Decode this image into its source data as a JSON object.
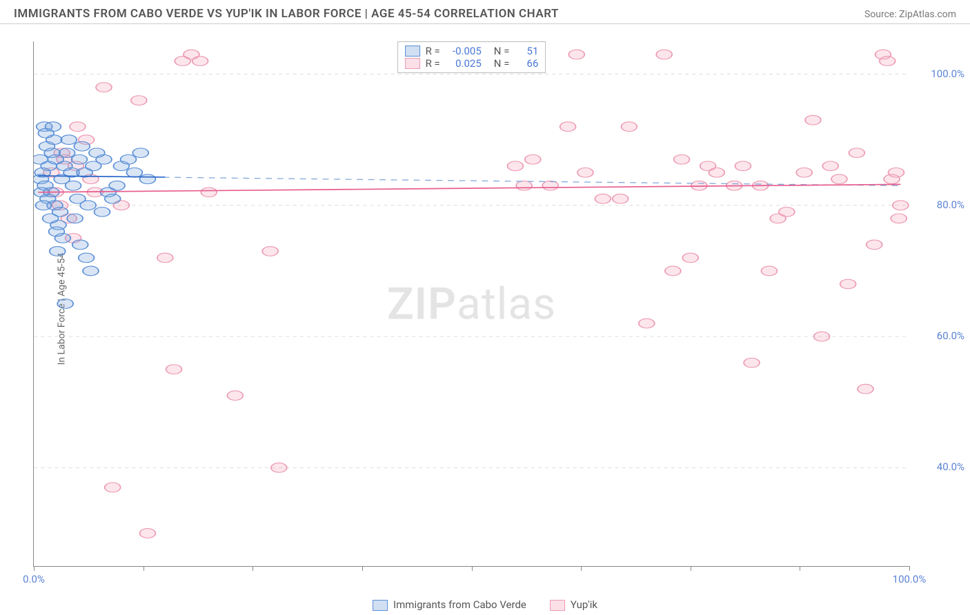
{
  "header": {
    "title": "IMMIGRANTS FROM CABO VERDE VS YUP'IK IN LABOR FORCE | AGE 45-54 CORRELATION CHART",
    "source_label": "Source: ",
    "source_name": "ZipAtlas.com"
  },
  "axes": {
    "ylabel": "In Labor Force | Age 45-54",
    "xlim": [
      0,
      100
    ],
    "ylim": [
      25,
      105
    ],
    "y_ticks": [
      40,
      60,
      80,
      100
    ],
    "y_tick_labels": [
      "40.0%",
      "60.0%",
      "80.0%",
      "100.0%"
    ],
    "x_ticks": [
      0,
      50,
      100
    ],
    "x_tick_marks": [
      0,
      12.5,
      25,
      37.5,
      50,
      62.5,
      75,
      87.5,
      100
    ],
    "x_tick_labels": [
      "0.0%",
      "",
      "100.0%"
    ],
    "tick_color": "#5b82d4"
  },
  "watermark": {
    "left": "ZIP",
    "right": "atlas"
  },
  "legend_top": {
    "rows": [
      {
        "swatch": "blue",
        "r_label": "R =",
        "r_value": "-0.005",
        "n_label": "N =",
        "n_value": "51"
      },
      {
        "swatch": "pink",
        "r_label": "R =",
        "r_value": "0.025",
        "n_label": "N =",
        "n_value": "66"
      }
    ]
  },
  "legend_bottom": {
    "items": [
      {
        "swatch": "blue",
        "label": "Immigrants from Cabo Verde"
      },
      {
        "swatch": "pink",
        "label": "Yup'ik"
      }
    ]
  },
  "chart": {
    "type": "scatter",
    "background_color": "#ffffff",
    "grid_color": "#d8d8d8",
    "marker_radius": 9,
    "series": [
      {
        "name": "Immigrants from Cabo Verde",
        "marker_class": "marker-blue",
        "fill_color": "#78a2db47",
        "stroke_color": "#5a8fd6",
        "trend_solid": {
          "x1": 0.5,
          "y1": 84.5,
          "x2": 15,
          "y2": 84.3,
          "class": "trend-blue-solid"
        },
        "trend_dash": {
          "x1": 0.5,
          "y1": 84.5,
          "x2": 99,
          "y2": 83.0,
          "class": "trend-blue-dash"
        },
        "points": [
          [
            1.2,
            92
          ],
          [
            1.5,
            89
          ],
          [
            1.7,
            86
          ],
          [
            1.0,
            85
          ],
          [
            2.1,
            88
          ],
          [
            2.3,
            90
          ],
          [
            2.5,
            87
          ],
          [
            0.8,
            84
          ],
          [
            1.3,
            83
          ],
          [
            1.6,
            81
          ],
          [
            2.0,
            82
          ],
          [
            2.4,
            80
          ],
          [
            3.0,
            79
          ],
          [
            3.2,
            84
          ],
          [
            3.5,
            86
          ],
          [
            3.8,
            88
          ],
          [
            4.0,
            90
          ],
          [
            4.3,
            85
          ],
          [
            4.5,
            83
          ],
          [
            5.0,
            81
          ],
          [
            5.2,
            87
          ],
          [
            5.5,
            89
          ],
          [
            6.0,
            72
          ],
          [
            6.5,
            70
          ],
          [
            2.8,
            77
          ],
          [
            3.3,
            75
          ],
          [
            1.9,
            78
          ],
          [
            2.6,
            76
          ],
          [
            1.1,
            80
          ],
          [
            0.9,
            82
          ],
          [
            5.8,
            85
          ],
          [
            6.8,
            86
          ],
          [
            7.2,
            88
          ],
          [
            8.0,
            87
          ],
          [
            8.5,
            82
          ],
          [
            9.0,
            81
          ],
          [
            10.0,
            86
          ],
          [
            10.8,
            87
          ],
          [
            11.5,
            85
          ],
          [
            12.2,
            88
          ],
          [
            13.0,
            84
          ],
          [
            3.6,
            65
          ],
          [
            2.7,
            73
          ],
          [
            4.7,
            78
          ],
          [
            5.3,
            74
          ],
          [
            6.2,
            80
          ],
          [
            7.8,
            79
          ],
          [
            9.5,
            83
          ],
          [
            0.7,
            87
          ],
          [
            1.4,
            91
          ],
          [
            2.2,
            92
          ]
        ]
      },
      {
        "name": "Yup'ik",
        "marker_class": "marker-pink",
        "fill_color": "#f4a6bc47",
        "stroke_color": "#ec9ab2",
        "trend_solid": {
          "x1": 0.5,
          "y1": 82.0,
          "x2": 99,
          "y2": 83.2,
          "class": "trend-pink-solid"
        },
        "points": [
          [
            2,
            85
          ],
          [
            2.5,
            82
          ],
          [
            3,
            80
          ],
          [
            3.5,
            87
          ],
          [
            4,
            78
          ],
          [
            4.5,
            75
          ],
          [
            5,
            92
          ],
          [
            6,
            90
          ],
          [
            7,
            82
          ],
          [
            8,
            98
          ],
          [
            9,
            37
          ],
          [
            10,
            80
          ],
          [
            12,
            96
          ],
          [
            13,
            30
          ],
          [
            15,
            72
          ],
          [
            16,
            55
          ],
          [
            17,
            102
          ],
          [
            18,
            103
          ],
          [
            19,
            102
          ],
          [
            20,
            82
          ],
          [
            23,
            51
          ],
          [
            27,
            73
          ],
          [
            28,
            40
          ],
          [
            56,
            83
          ],
          [
            57,
            87
          ],
          [
            59,
            83
          ],
          [
            61,
            92
          ],
          [
            62,
            103
          ],
          [
            65,
            81
          ],
          [
            67,
            81
          ],
          [
            68,
            92
          ],
          [
            70,
            62
          ],
          [
            72,
            103
          ],
          [
            73,
            70
          ],
          [
            74,
            87
          ],
          [
            75,
            72
          ],
          [
            76,
            83
          ],
          [
            77,
            86
          ],
          [
            78,
            85
          ],
          [
            80,
            83
          ],
          [
            81,
            86
          ],
          [
            82,
            56
          ],
          [
            83,
            83
          ],
          [
            84,
            70
          ],
          [
            85,
            78
          ],
          [
            86,
            79
          ],
          [
            88,
            85
          ],
          [
            89,
            93
          ],
          [
            90,
            60
          ],
          [
            91,
            86
          ],
          [
            92,
            84
          ],
          [
            93,
            68
          ],
          [
            94,
            88
          ],
          [
            95,
            52
          ],
          [
            96,
            74
          ],
          [
            97,
            103
          ],
          [
            97.5,
            102
          ],
          [
            98,
            84
          ],
          [
            98.5,
            85
          ],
          [
            98.8,
            78
          ],
          [
            99,
            80
          ],
          [
            4.8,
            86
          ],
          [
            6.5,
            84
          ],
          [
            3.2,
            88
          ],
          [
            55,
            86
          ],
          [
            63,
            85
          ]
        ]
      }
    ]
  }
}
